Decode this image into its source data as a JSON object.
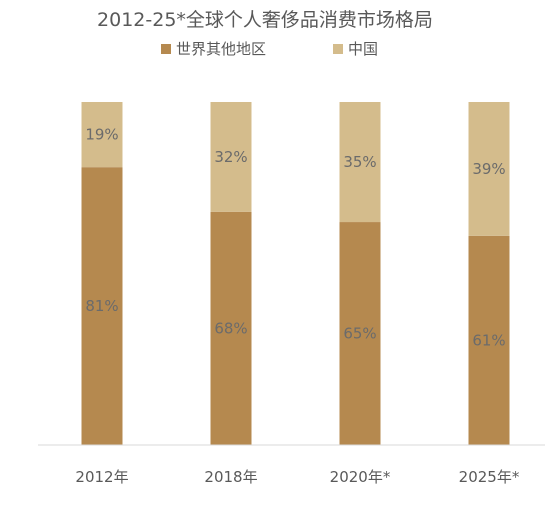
{
  "chart_data": {
    "type": "bar",
    "stacked": true,
    "title": "2012-25*全球个人奢侈品消费市场格局",
    "categories": [
      "2012年",
      "2018年",
      "2020年*",
      "2025年*"
    ],
    "series": [
      {
        "name": "世界其他地区",
        "values": [
          81,
          68,
          65,
          61
        ],
        "labels": [
          "81%",
          "68%",
          "65%",
          "61%"
        ],
        "color": "#b5894f"
      },
      {
        "name": "中国",
        "values": [
          19,
          32,
          35,
          39
        ],
        "labels": [
          "19%",
          "32%",
          "35%",
          "39%"
        ],
        "color": "#d4bc8c"
      }
    ],
    "ylim": [
      0,
      100
    ],
    "grid": false,
    "legend": "top-center"
  }
}
